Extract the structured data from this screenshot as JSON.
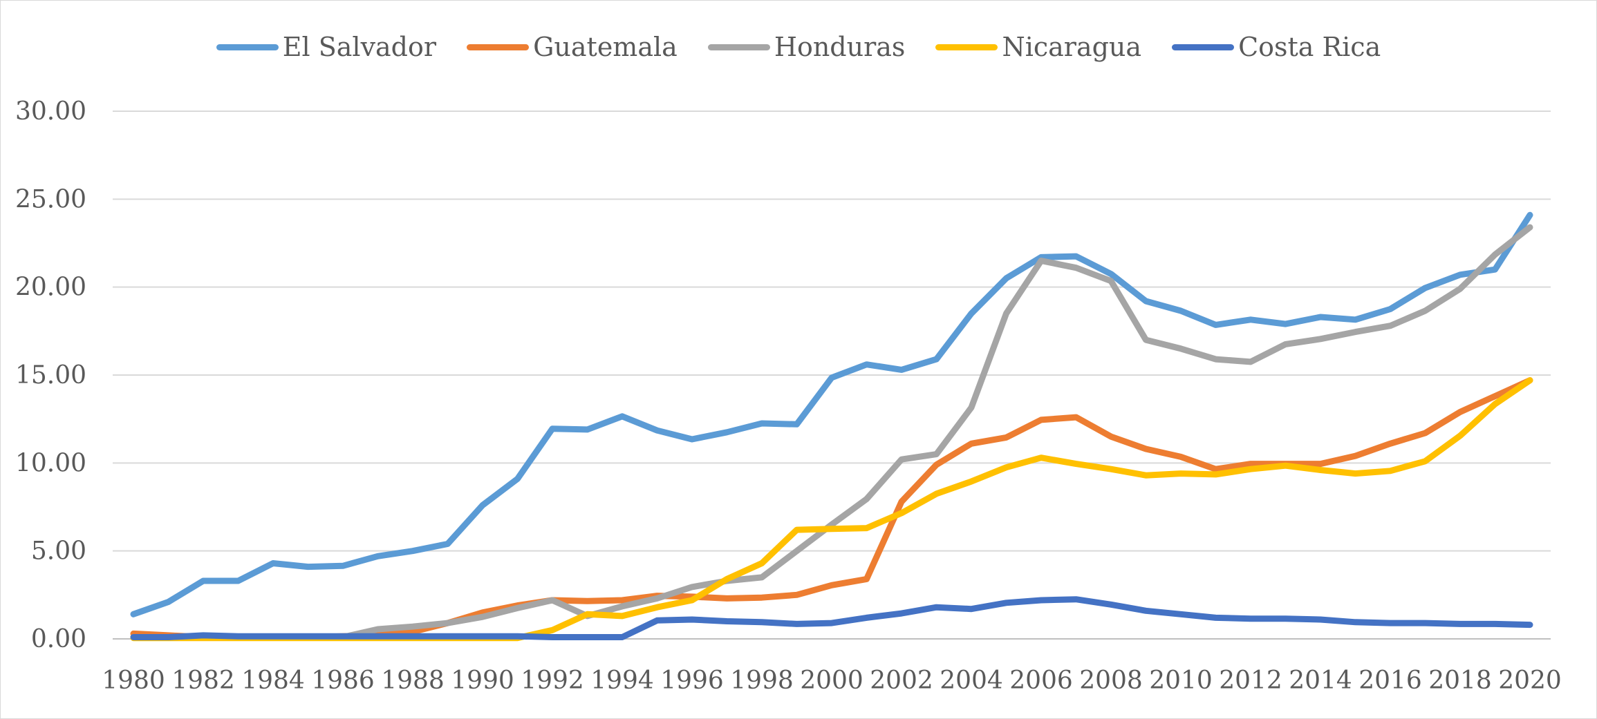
{
  "chart_data": {
    "type": "line",
    "title": "",
    "xlabel": "",
    "ylabel": "",
    "ylim": [
      0,
      30
    ],
    "yticks": [
      "0.00",
      "5.00",
      "10.00",
      "15.00",
      "20.00",
      "25.00",
      "30.00"
    ],
    "x": [
      1980,
      1981,
      1982,
      1983,
      1984,
      1985,
      1986,
      1987,
      1988,
      1989,
      1990,
      1991,
      1992,
      1993,
      1994,
      1995,
      1996,
      1997,
      1998,
      1999,
      2000,
      2001,
      2002,
      2003,
      2004,
      2005,
      2006,
      2007,
      2008,
      2009,
      2010,
      2011,
      2012,
      2013,
      2014,
      2015,
      2016,
      2017,
      2018,
      2019,
      2020
    ],
    "xticks": [
      "1980",
      "1982",
      "1984",
      "1986",
      "1988",
      "1990",
      "1992",
      "1994",
      "1996",
      "1998",
      "2000",
      "2002",
      "2004",
      "2006",
      "2008",
      "2010",
      "2012",
      "2014",
      "2016",
      "2018",
      "2020"
    ],
    "grid": true,
    "legend_position": "top",
    "series": [
      {
        "name": "El Salvador",
        "color": "#5b9bd5",
        "values": [
          1.4,
          2.1,
          3.3,
          3.3,
          4.3,
          4.1,
          4.15,
          4.7,
          5.0,
          5.4,
          7.6,
          9.1,
          11.95,
          11.9,
          12.65,
          11.85,
          11.35,
          11.75,
          12.25,
          12.2,
          14.85,
          15.6,
          15.3,
          15.9,
          18.5,
          20.5,
          21.7,
          21.75,
          20.75,
          19.2,
          18.65,
          17.85,
          18.15,
          17.9,
          18.3,
          18.15,
          18.75,
          19.95,
          20.7,
          21.0,
          24.1
        ]
      },
      {
        "name": "Guatemala",
        "color": "#ed7d31",
        "values": [
          0.3,
          0.2,
          0.1,
          0.1,
          0.1,
          0.1,
          0.15,
          0.2,
          0.4,
          0.9,
          1.5,
          1.9,
          2.2,
          2.15,
          2.2,
          2.45,
          2.4,
          2.3,
          2.35,
          2.5,
          3.05,
          3.4,
          7.8,
          9.9,
          11.1,
          11.45,
          12.45,
          12.6,
          11.5,
          10.8,
          10.35,
          9.65,
          9.95,
          9.95,
          9.95,
          10.4,
          11.1,
          11.7,
          12.9,
          13.8,
          14.7
        ]
      },
      {
        "name": "Honduras",
        "color": "#a5a5a5",
        "values": [
          0.1,
          0.1,
          0.1,
          0.1,
          0.1,
          0.1,
          0.1,
          0.55,
          0.7,
          0.9,
          1.25,
          1.75,
          2.2,
          1.3,
          1.85,
          2.3,
          2.95,
          3.3,
          3.5,
          5.0,
          6.5,
          7.95,
          10.2,
          10.5,
          13.15,
          18.5,
          21.5,
          21.1,
          20.35,
          17.0,
          16.5,
          15.9,
          15.75,
          16.75,
          17.05,
          17.45,
          17.8,
          18.65,
          19.9,
          21.85,
          23.4
        ]
      },
      {
        "name": "Nicaragua",
        "color": "#ffc000",
        "values": [
          0.05,
          0.05,
          0.05,
          0.05,
          0.05,
          0.05,
          0.05,
          0.05,
          0.05,
          0.05,
          0.05,
          0.05,
          0.5,
          1.4,
          1.3,
          1.8,
          2.2,
          3.4,
          4.3,
          6.2,
          6.25,
          6.3,
          7.15,
          8.25,
          8.95,
          9.75,
          10.3,
          9.95,
          9.65,
          9.3,
          9.4,
          9.35,
          9.65,
          9.85,
          9.6,
          9.4,
          9.55,
          10.1,
          11.55,
          13.35,
          14.7
        ]
      },
      {
        "name": "Costa Rica",
        "color": "#4472c4",
        "values": [
          0.1,
          0.1,
          0.2,
          0.15,
          0.15,
          0.15,
          0.15,
          0.15,
          0.15,
          0.15,
          0.15,
          0.15,
          0.1,
          0.1,
          0.1,
          1.05,
          1.1,
          1.0,
          0.95,
          0.85,
          0.9,
          1.2,
          1.45,
          1.8,
          1.7,
          2.05,
          2.2,
          2.25,
          1.95,
          1.6,
          1.4,
          1.2,
          1.15,
          1.15,
          1.1,
          0.95,
          0.9,
          0.9,
          0.85,
          0.85,
          0.8
        ]
      }
    ]
  }
}
